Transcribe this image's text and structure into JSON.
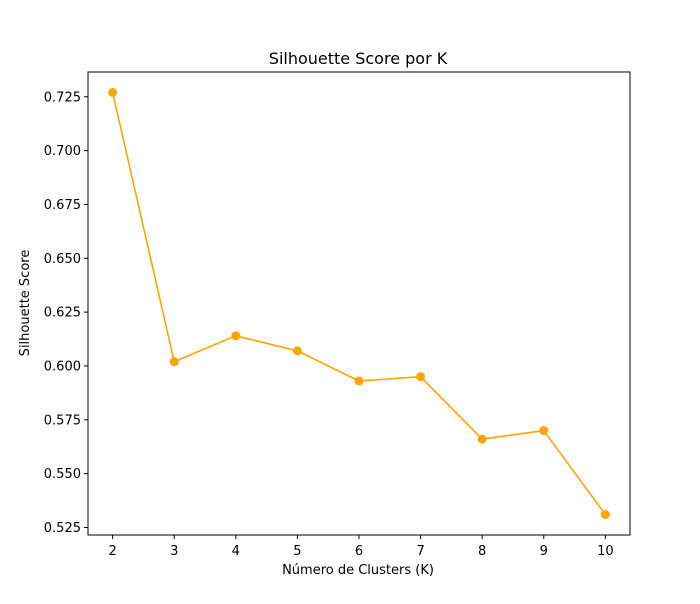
{
  "chart_data": {
    "type": "line",
    "title": "Silhouette Score por K",
    "xlabel": "Número de Clusters (K)",
    "ylabel": "Silhouette Score",
    "x": [
      2,
      3,
      4,
      5,
      6,
      7,
      8,
      9,
      10
    ],
    "series": [
      {
        "name": "",
        "values": [
          0.727,
          0.602,
          0.614,
          0.607,
          0.593,
          0.595,
          0.566,
          0.57,
          0.531
        ],
        "color": "#FFA500",
        "marker": "circle"
      }
    ],
    "xticks": [
      "2",
      "3",
      "4",
      "5",
      "6",
      "7",
      "8",
      "9",
      "10"
    ],
    "yticks": [
      0.525,
      0.55,
      0.575,
      0.6,
      0.625,
      0.65,
      0.675,
      0.7,
      0.725
    ],
    "ytick_labels": [
      "0.525",
      "0.550",
      "0.575",
      "0.600",
      "0.625",
      "0.650",
      "0.675",
      "0.700",
      "0.725"
    ],
    "xlim": [
      1.6,
      10.4
    ],
    "ylim": [
      0.5215,
      0.7365
    ],
    "grid": false,
    "legend": "none"
  }
}
